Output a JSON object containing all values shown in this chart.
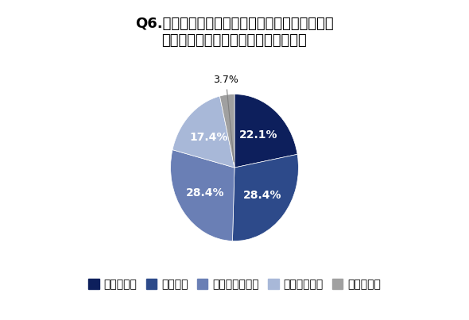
{
  "title": "Q6.あなたは、電子マネーによる給与の支払いを\n自社で導入して欲しいと思いますか。",
  "labels": [
    "非常に思う",
    "少し思う",
    "あまり思わない",
    "全く思わない",
    "わからない"
  ],
  "values": [
    22.1,
    28.4,
    28.4,
    17.4,
    3.7
  ],
  "colors": [
    "#0d1f5c",
    "#2d4a8a",
    "#6a7fb5",
    "#a8b8d8",
    "#a0a0a0"
  ],
  "text_colors": [
    "white",
    "white",
    "white",
    "white",
    "black"
  ],
  "label_pcts": [
    "22.1%",
    "28.4%",
    "28.4%",
    "17.4%",
    "3.7%"
  ],
  "startangle": 90,
  "legend_labels": [
    "非常に思う",
    "少し思う",
    "あまり思わない",
    "全く思わない",
    "わからない"
  ],
  "background_color": "#ffffff",
  "title_fontsize": 13,
  "legend_fontsize": 10
}
